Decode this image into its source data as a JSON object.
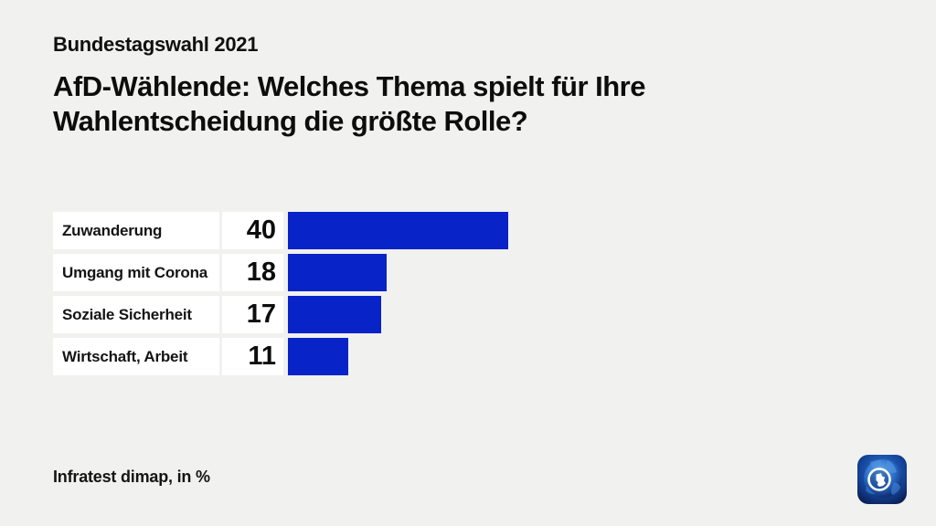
{
  "page": {
    "kicker": "Bundestagswahl 2021",
    "title_line1": "AfD-Wählende: Welches Thema spielt für Ihre",
    "title_line2": "Wahlentscheidung die größte Rolle?",
    "source": "Infratest dimap, in %",
    "logo": "tagesschau-globe-logo"
  },
  "chart_data": {
    "type": "bar",
    "orientation": "horizontal",
    "title": "AfD-Wählende: Welches Thema spielt für Ihre Wahlentscheidung die größte Rolle?",
    "subtitle": "Bundestagswahl 2021",
    "categories": [
      "Zuwanderung",
      "Umgang mit Corona",
      "Soziale Sicherheit",
      "Wirtschaft, Arbeit"
    ],
    "values": [
      40,
      18,
      17,
      11
    ],
    "unit": "%",
    "source": "Infratest dimap, in %",
    "xlim": [
      0,
      40
    ],
    "value_labels_shown": true,
    "grid": false,
    "legend": false,
    "bar_color": "#0823c8"
  },
  "colors": {
    "background": "#f1f1ef",
    "box": "#ffffff",
    "bar": "#0823c8",
    "text": "#0d0d0d"
  }
}
